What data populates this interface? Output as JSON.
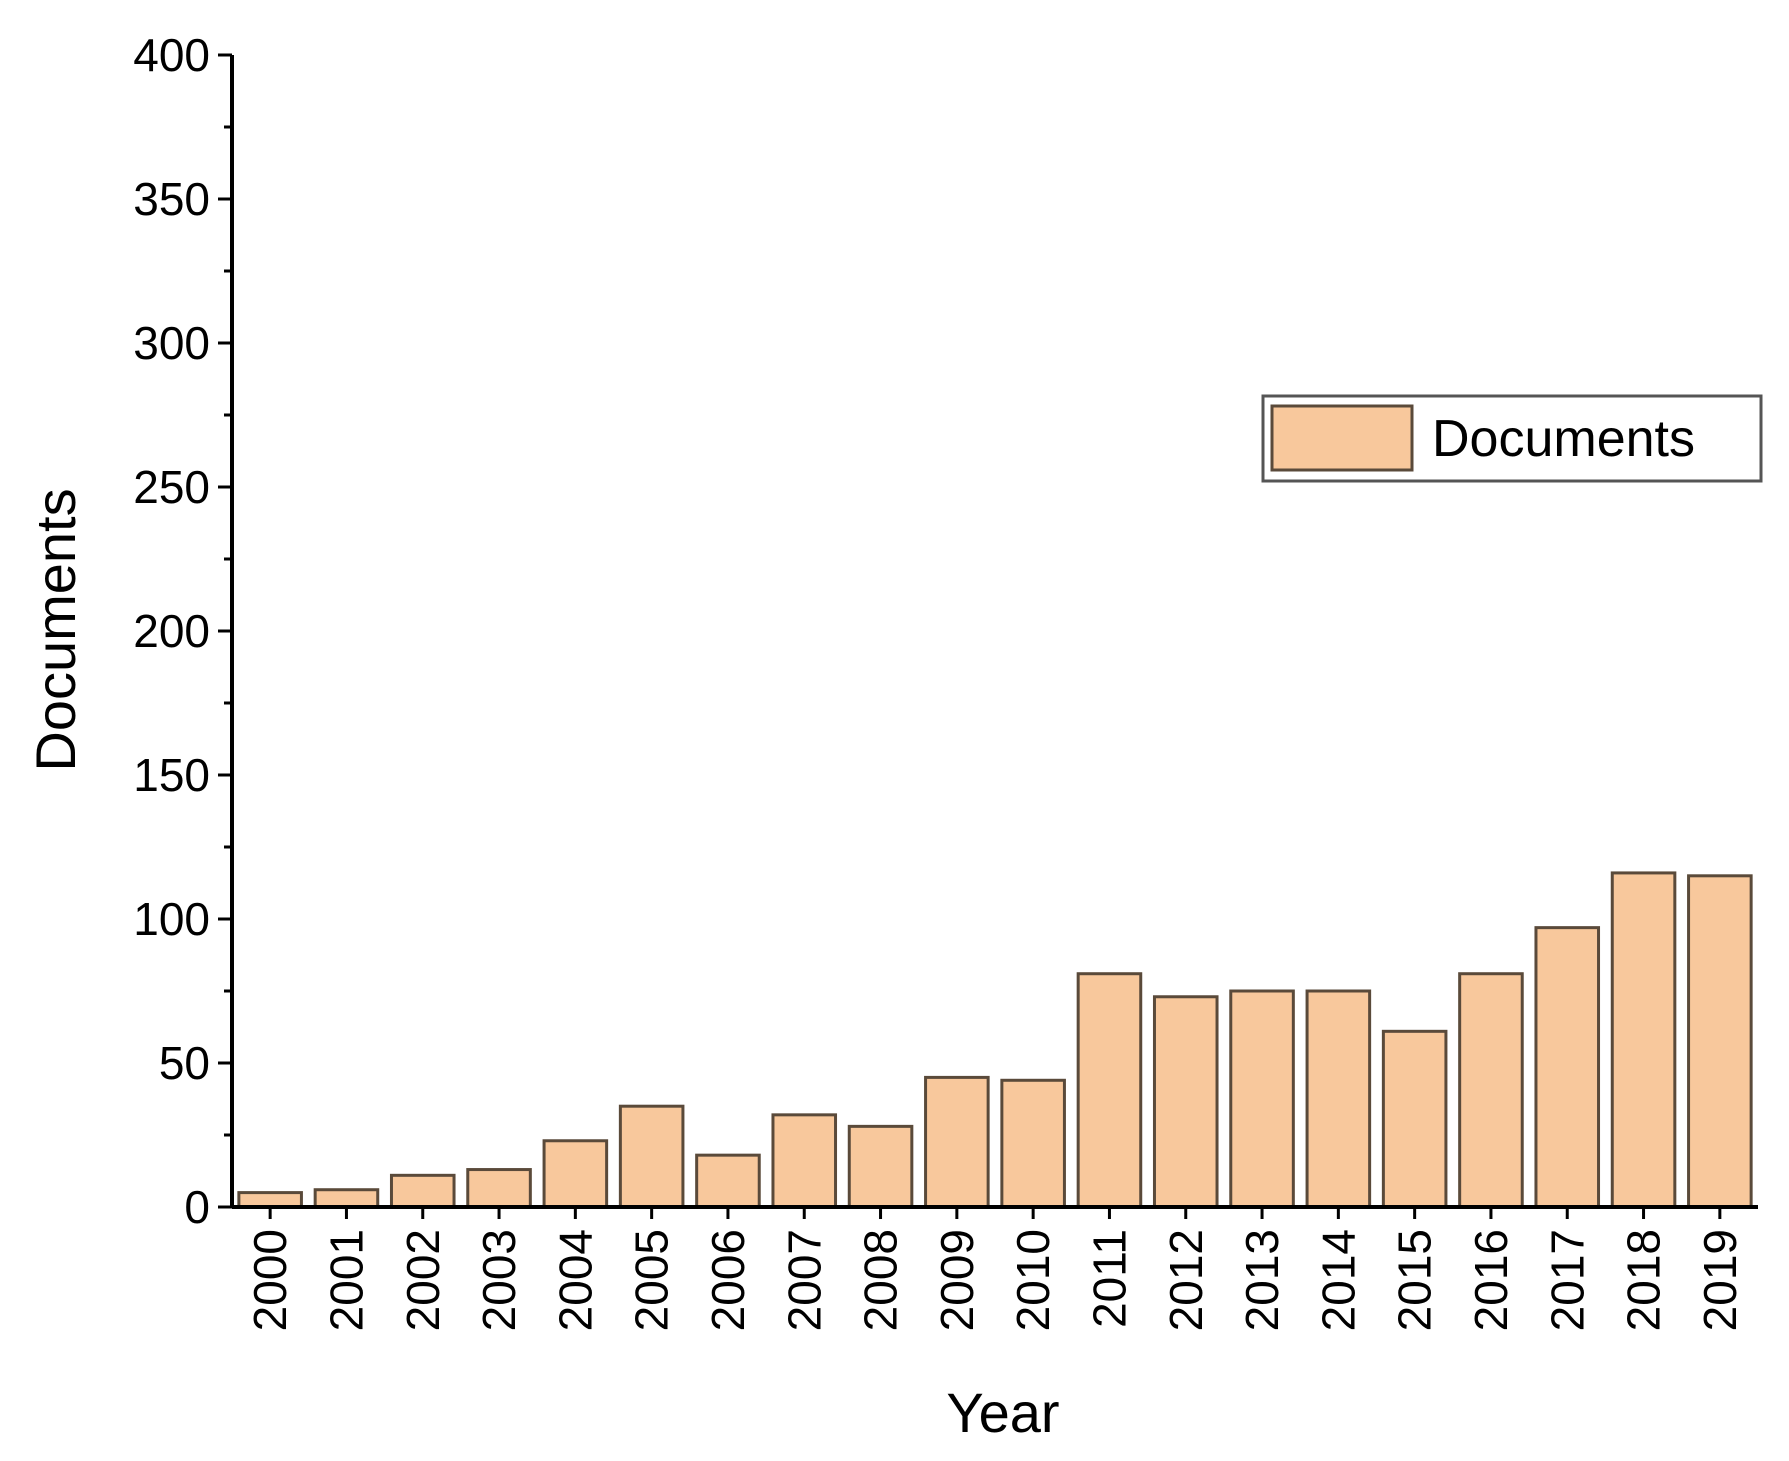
{
  "chart_data": {
    "type": "bar",
    "title": "",
    "xlabel": "Year",
    "ylabel": "Documents",
    "ylim": [
      0,
      400
    ],
    "y_ticks": [
      0,
      50,
      100,
      150,
      200,
      250,
      300,
      350,
      400
    ],
    "categories": [
      "2000",
      "2001",
      "2002",
      "2003",
      "2004",
      "2005",
      "2006",
      "2007",
      "2008",
      "2009",
      "2010",
      "2011",
      "2012",
      "2013",
      "2014",
      "2015",
      "2016",
      "2017",
      "2018",
      "2019"
    ],
    "series": [
      {
        "name": "Documents",
        "values": [
          5,
          6,
          11,
          13,
          23,
          35,
          18,
          32,
          28,
          45,
          44,
          81,
          73,
          75,
          75,
          61,
          81,
          97,
          116,
          115
        ]
      }
    ],
    "grid": false,
    "legend_position": "right",
    "colors": {
      "bar_fill": "#f8c89c",
      "bar_stroke": "#5a4a3a",
      "axis": "#000000"
    }
  }
}
